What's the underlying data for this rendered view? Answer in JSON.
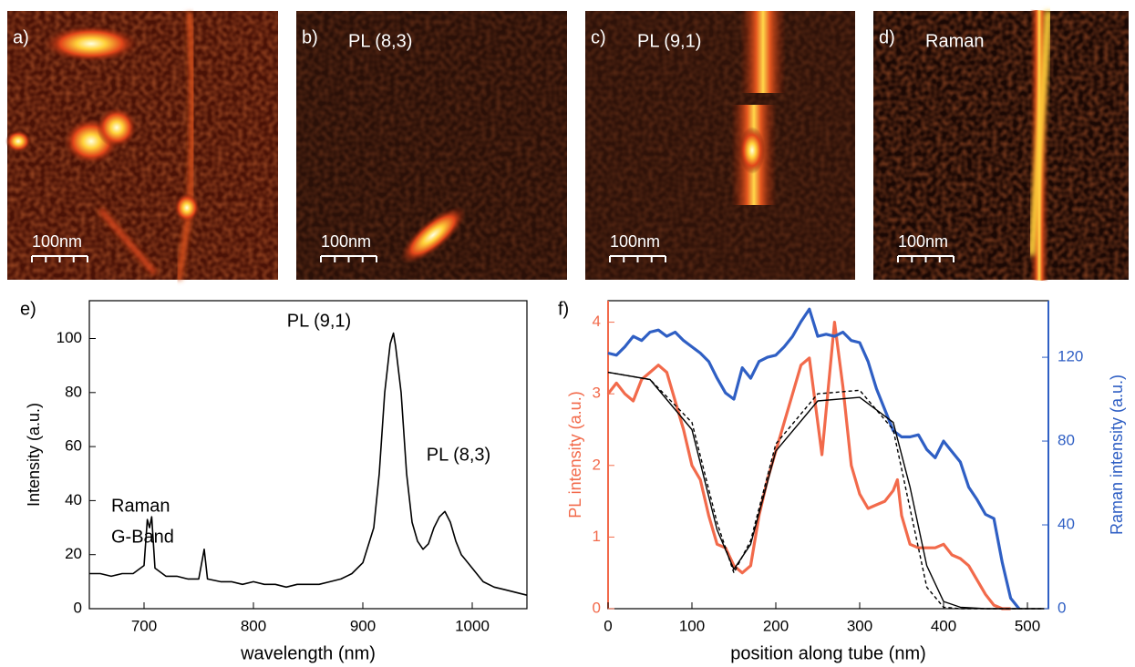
{
  "panels": [
    {
      "label": "a)",
      "scale": "100nm"
    },
    {
      "label": "b)",
      "title": "PL (8,3)",
      "scale": "100nm"
    },
    {
      "label": "c)",
      "title": "PL (9,1)",
      "scale": "100nm"
    },
    {
      "label": "d)",
      "title": "Raman",
      "scale": "100nm"
    }
  ],
  "chart_data": [
    {
      "type": "line",
      "label": "e)",
      "xlabel": "wavelength (nm)",
      "ylabel": "Intensity (a.u.)",
      "annotations": [
        "Raman",
        "G-Band",
        "PL (9,1)",
        "PL (8,3)"
      ],
      "xlim": [
        650,
        1050
      ],
      "ylim": [
        0,
        114
      ],
      "xticks": [
        700,
        800,
        900,
        1000
      ],
      "yticks": [
        0,
        20,
        40,
        60,
        80,
        100
      ],
      "x": [
        650,
        660,
        670,
        680,
        690,
        700,
        703,
        705,
        707,
        710,
        720,
        730,
        740,
        750,
        755,
        758,
        770,
        780,
        790,
        800,
        810,
        820,
        830,
        840,
        850,
        860,
        870,
        880,
        890,
        900,
        910,
        915,
        920,
        925,
        928,
        930,
        935,
        940,
        945,
        950,
        955,
        960,
        965,
        970,
        975,
        980,
        985,
        990,
        1000,
        1010,
        1020,
        1030,
        1040,
        1050
      ],
      "series": [
        {
          "color": "#000000",
          "values": [
            13,
            13,
            12,
            13,
            13,
            16,
            33,
            30,
            34,
            15,
            12,
            12,
            11,
            11,
            22,
            11,
            10,
            10,
            9,
            10,
            9,
            9,
            8,
            9,
            9,
            9,
            10,
            11,
            13,
            17,
            30,
            50,
            80,
            98,
            102,
            97,
            80,
            50,
            32,
            25,
            22,
            24,
            30,
            34,
            36,
            32,
            25,
            20,
            15,
            10,
            8,
            7,
            6,
            5
          ]
        }
      ]
    },
    {
      "type": "line",
      "label": "f)",
      "xlabel": "position along tube (nm)",
      "ylabel": "PL intensity (a.u.)",
      "y2label": "Raman intensity (a.u.)",
      "ylabel_color": "#f26a4b",
      "y2label_color": "#2f5fc4",
      "xlim": [
        0,
        525
      ],
      "ylim": [
        0,
        4.3
      ],
      "y2lim": [
        0,
        147
      ],
      "xticks": [
        0,
        100,
        200,
        300,
        400,
        500
      ],
      "yticks": [
        0,
        1,
        2,
        3,
        4
      ],
      "y2ticks": [
        0,
        40,
        80,
        120
      ],
      "series": [
        {
          "color": "#f26a4b",
          "x": [
            0,
            10,
            20,
            30,
            40,
            50,
            60,
            70,
            80,
            90,
            100,
            110,
            120,
            130,
            140,
            150,
            160,
            170,
            180,
            190,
            200,
            210,
            220,
            230,
            240,
            255,
            270,
            280,
            290,
            300,
            310,
            320,
            330,
            340,
            345,
            350,
            360,
            370,
            380,
            390,
            400,
            410,
            420,
            430,
            440,
            450,
            460,
            470,
            480
          ],
          "values": [
            3.0,
            3.15,
            3.0,
            2.9,
            3.2,
            3.3,
            3.4,
            3.3,
            2.9,
            2.5,
            2.0,
            1.8,
            1.3,
            0.9,
            0.85,
            0.6,
            0.5,
            0.6,
            1.3,
            1.8,
            2.2,
            2.6,
            3.0,
            3.4,
            3.5,
            2.15,
            4.0,
            3.1,
            2.0,
            1.6,
            1.4,
            1.45,
            1.5,
            1.65,
            1.8,
            1.3,
            0.9,
            0.85,
            0.85,
            0.85,
            0.9,
            0.75,
            0.7,
            0.6,
            0.4,
            0.2,
            0.05,
            0.0,
            0.0
          ]
        },
        {
          "color": "#2f5fc4",
          "axis": "y2",
          "x": [
            0,
            10,
            20,
            30,
            40,
            50,
            60,
            70,
            80,
            90,
            100,
            110,
            120,
            130,
            140,
            150,
            160,
            170,
            180,
            190,
            200,
            210,
            220,
            230,
            240,
            250,
            260,
            270,
            280,
            290,
            300,
            310,
            320,
            330,
            340,
            350,
            360,
            370,
            380,
            390,
            400,
            410,
            420,
            430,
            440,
            450,
            460,
            470,
            480,
            490
          ],
          "values": [
            122,
            121,
            125,
            130,
            128,
            132,
            133,
            130,
            132,
            128,
            125,
            122,
            118,
            110,
            103,
            100,
            115,
            110,
            118,
            120,
            121,
            125,
            130,
            137,
            143,
            130,
            131,
            130,
            132,
            128,
            127,
            118,
            105,
            95,
            85,
            82,
            82,
            83,
            76,
            72,
            80,
            75,
            70,
            58,
            52,
            45,
            43,
            22,
            5,
            0
          ]
        },
        {
          "color": "#000000",
          "x": [
            0,
            50,
            100,
            130,
            150,
            170,
            200,
            250,
            300,
            340,
            360,
            380,
            400,
            420,
            450,
            520
          ],
          "values": [
            3.3,
            3.2,
            2.5,
            1.1,
            0.55,
            0.9,
            2.2,
            2.9,
            2.95,
            2.6,
            1.7,
            0.6,
            0.1,
            0.02,
            0,
            0
          ]
        },
        {
          "color": "#000000",
          "dashed": true,
          "x": [
            0,
            50,
            100,
            130,
            150,
            170,
            200,
            250,
            300,
            340,
            360,
            380,
            400,
            420,
            520
          ],
          "values": [
            3.3,
            3.2,
            2.6,
            1.2,
            0.5,
            0.95,
            2.3,
            3.0,
            3.05,
            2.5,
            1.4,
            0.3,
            0.02,
            0,
            0
          ]
        }
      ]
    }
  ]
}
